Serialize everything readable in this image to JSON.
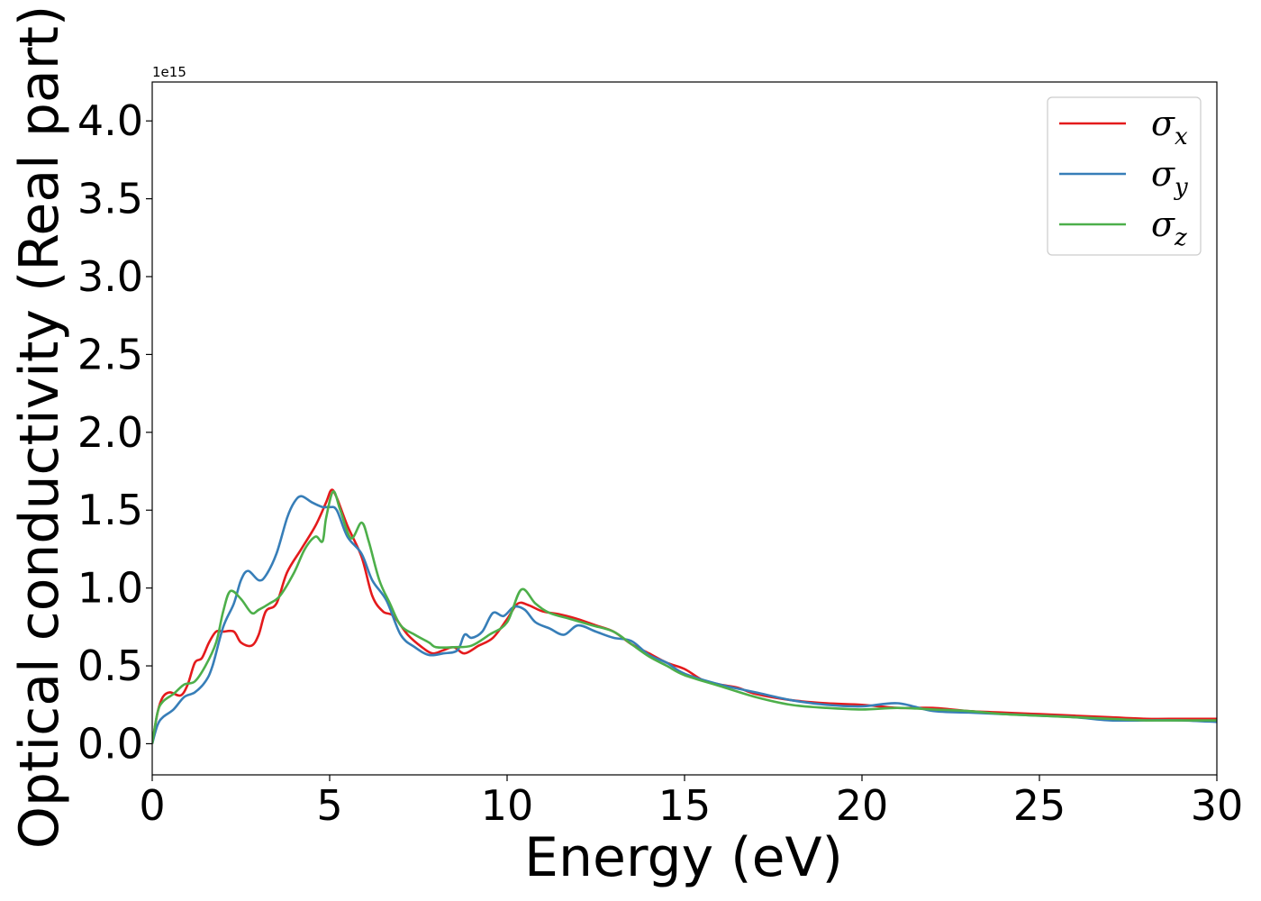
{
  "chart_data": {
    "type": "line",
    "xlabel": "Energy (eV)",
    "ylabel": "Optical conductivity (Real part)",
    "y_offset_label": "1e15",
    "xlim": [
      0,
      30
    ],
    "ylim": [
      -0.2,
      4.25
    ],
    "xticks": [
      0,
      5,
      10,
      15,
      20,
      25,
      30
    ],
    "xtick_labels": [
      "0",
      "5",
      "10",
      "15",
      "20",
      "25",
      "30"
    ],
    "yticks": [
      0.0,
      0.5,
      1.0,
      1.5,
      2.0,
      2.5,
      3.0,
      3.5,
      4.0
    ],
    "ytick_labels": [
      "0.0",
      "0.5",
      "1.0",
      "1.5",
      "2.0",
      "2.5",
      "3.0",
      "3.5",
      "4.0"
    ],
    "grid": false,
    "legend_position": "top-right",
    "legend_entries": [
      {
        "base": "σ",
        "sub": "x",
        "color": "#e41a1c"
      },
      {
        "base": "σ",
        "sub": "y",
        "color": "#377eb8"
      },
      {
        "base": "σ",
        "sub": "z",
        "color": "#4daf4a"
      }
    ],
    "series": [
      {
        "name": "σx",
        "color": "#e41a1c",
        "x": [
          0,
          0.15,
          0.3,
          0.5,
          0.8,
          1.0,
          1.2,
          1.4,
          1.6,
          1.8,
          2.0,
          2.3,
          2.5,
          2.8,
          3.0,
          3.2,
          3.5,
          3.8,
          4.2,
          4.6,
          4.9,
          5.05,
          5.2,
          5.5,
          5.9,
          6.2,
          6.5,
          6.8,
          7.2,
          7.6,
          7.9,
          8.2,
          8.5,
          8.8,
          9.2,
          9.6,
          10.0,
          10.3,
          10.6,
          11.0,
          11.5,
          12.0,
          12.5,
          13.0,
          13.5,
          14.0,
          14.5,
          15.0,
          15.5,
          16.0,
          16.5,
          17.0,
          18.0,
          19.0,
          20.0,
          21.0,
          22.0,
          23.0,
          24.0,
          25.0,
          26.0,
          27.0,
          28.0,
          29.0,
          30.0
        ],
        "y": [
          0.0,
          0.2,
          0.3,
          0.33,
          0.31,
          0.38,
          0.52,
          0.55,
          0.65,
          0.72,
          0.72,
          0.72,
          0.65,
          0.63,
          0.7,
          0.85,
          0.9,
          1.1,
          1.25,
          1.4,
          1.55,
          1.63,
          1.58,
          1.4,
          1.2,
          0.95,
          0.85,
          0.82,
          0.7,
          0.62,
          0.58,
          0.6,
          0.62,
          0.58,
          0.63,
          0.68,
          0.8,
          0.9,
          0.89,
          0.85,
          0.83,
          0.8,
          0.76,
          0.72,
          0.64,
          0.58,
          0.52,
          0.48,
          0.41,
          0.38,
          0.36,
          0.32,
          0.28,
          0.26,
          0.25,
          0.23,
          0.23,
          0.21,
          0.2,
          0.19,
          0.18,
          0.17,
          0.16,
          0.16,
          0.16
        ]
      },
      {
        "name": "σy",
        "color": "#377eb8",
        "x": [
          0,
          0.15,
          0.3,
          0.6,
          0.9,
          1.2,
          1.5,
          1.7,
          2.0,
          2.3,
          2.5,
          2.7,
          3.0,
          3.2,
          3.5,
          3.8,
          4.0,
          4.2,
          4.5,
          4.8,
          5.0,
          5.2,
          5.5,
          5.9,
          6.2,
          6.6,
          7.0,
          7.4,
          7.8,
          8.2,
          8.6,
          8.8,
          9.0,
          9.3,
          9.6,
          9.9,
          10.2,
          10.5,
          10.8,
          11.2,
          11.6,
          12.0,
          12.5,
          13.0,
          13.5,
          14.0,
          14.5,
          15.0,
          16.0,
          17.0,
          18.0,
          19.0,
          20.0,
          21.0,
          22.0,
          23.0,
          24.0,
          25.0,
          26.0,
          27.0,
          28.0,
          29.0,
          30.0
        ],
        "y": [
          0.0,
          0.12,
          0.17,
          0.22,
          0.3,
          0.33,
          0.4,
          0.5,
          0.75,
          0.9,
          1.05,
          1.11,
          1.05,
          1.08,
          1.22,
          1.45,
          1.55,
          1.59,
          1.55,
          1.52,
          1.52,
          1.5,
          1.33,
          1.22,
          1.05,
          0.92,
          0.7,
          0.62,
          0.57,
          0.58,
          0.6,
          0.7,
          0.68,
          0.72,
          0.84,
          0.82,
          0.88,
          0.86,
          0.78,
          0.74,
          0.7,
          0.76,
          0.72,
          0.68,
          0.66,
          0.57,
          0.52,
          0.45,
          0.38,
          0.33,
          0.28,
          0.25,
          0.24,
          0.26,
          0.21,
          0.2,
          0.19,
          0.18,
          0.17,
          0.15,
          0.15,
          0.15,
          0.14
        ]
      },
      {
        "name": "σz",
        "color": "#4daf4a",
        "x": [
          0,
          0.15,
          0.3,
          0.6,
          0.9,
          1.2,
          1.5,
          1.8,
          2.0,
          2.2,
          2.5,
          2.8,
          3.0,
          3.3,
          3.6,
          4.0,
          4.3,
          4.6,
          4.8,
          4.9,
          5.1,
          5.3,
          5.6,
          5.9,
          6.1,
          6.4,
          6.7,
          7.0,
          7.4,
          7.8,
          8.0,
          8.5,
          9.0,
          9.5,
          10.0,
          10.4,
          10.8,
          11.2,
          11.8,
          12.4,
          13.0,
          13.5,
          14.0,
          14.5,
          15.0,
          16.0,
          17.0,
          18.0,
          19.0,
          20.0,
          21.0,
          22.0,
          23.0,
          24.0,
          25.0,
          26.0,
          27.0,
          28.0,
          29.0,
          30.0
        ],
        "y": [
          0.0,
          0.2,
          0.27,
          0.32,
          0.38,
          0.4,
          0.5,
          0.65,
          0.85,
          0.98,
          0.93,
          0.84,
          0.86,
          0.9,
          0.95,
          1.1,
          1.25,
          1.33,
          1.3,
          1.45,
          1.62,
          1.5,
          1.32,
          1.42,
          1.3,
          1.05,
          0.9,
          0.76,
          0.7,
          0.65,
          0.62,
          0.62,
          0.63,
          0.7,
          0.78,
          0.99,
          0.9,
          0.84,
          0.8,
          0.76,
          0.72,
          0.64,
          0.56,
          0.5,
          0.44,
          0.37,
          0.3,
          0.25,
          0.23,
          0.22,
          0.23,
          0.22,
          0.21,
          0.19,
          0.18,
          0.17,
          0.16,
          0.15,
          0.15,
          0.15
        ]
      }
    ]
  }
}
